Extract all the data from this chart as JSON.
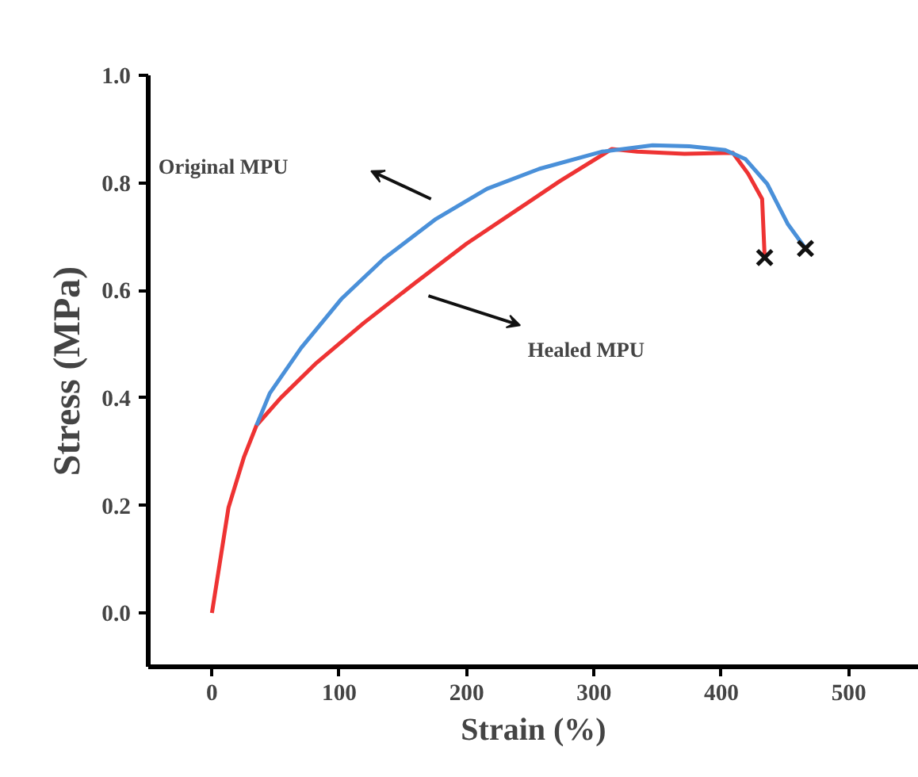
{
  "chart_data": {
    "type": "line",
    "xlabel": "Strain (%)",
    "ylabel": "Stress (MPa)",
    "xlim": [
      -50,
      555
    ],
    "ylim": [
      -0.1,
      1.0
    ],
    "xticks": [
      0,
      100,
      200,
      300,
      400,
      500
    ],
    "yticks": [
      {
        "value": 0,
        "label": "0.0"
      },
      {
        "value": 0.2,
        "label": "0.2"
      },
      {
        "value": 0.4,
        "label": "0.4"
      },
      {
        "value": 0.6,
        "label": "0.6"
      },
      {
        "value": 0.8,
        "label": "0.8"
      },
      {
        "value": 1.0,
        "label": "1.0"
      }
    ],
    "grid": false,
    "line_style": "solid",
    "series": [
      {
        "color": "#ee3333",
        "x": [
          0,
          13,
          25,
          35,
          54,
          82,
          119,
          159,
          200,
          241,
          273,
          314,
          334,
          371,
          409,
          421,
          432,
          434
        ],
        "values": [
          0,
          0.196,
          0.289,
          0.349,
          0.4,
          0.465,
          0.539,
          0.613,
          0.687,
          0.752,
          0.803,
          0.863,
          0.858,
          0.854,
          0.856,
          0.817,
          0.77,
          0.661
        ]
      },
      {
        "color": "#4a90d9",
        "x": [
          35,
          45.5,
          70,
          102,
          135,
          176,
          216,
          257,
          306,
          346,
          375,
          403,
          419,
          436,
          452,
          466
        ],
        "values": [
          0.349,
          0.409,
          0.493,
          0.585,
          0.659,
          0.733,
          0.789,
          0.826,
          0.858,
          0.87,
          0.868,
          0.861,
          0.844,
          0.798,
          0.724,
          0.678
        ]
      },
      {
        "type": "scatter",
        "marker": "cross",
        "color": "#111111",
        "x": [
          434,
          466
        ],
        "values": [
          0.661,
          0.678
        ]
      }
    ],
    "annotations": [
      "Original MPU",
      "Healed MPU"
    ]
  }
}
